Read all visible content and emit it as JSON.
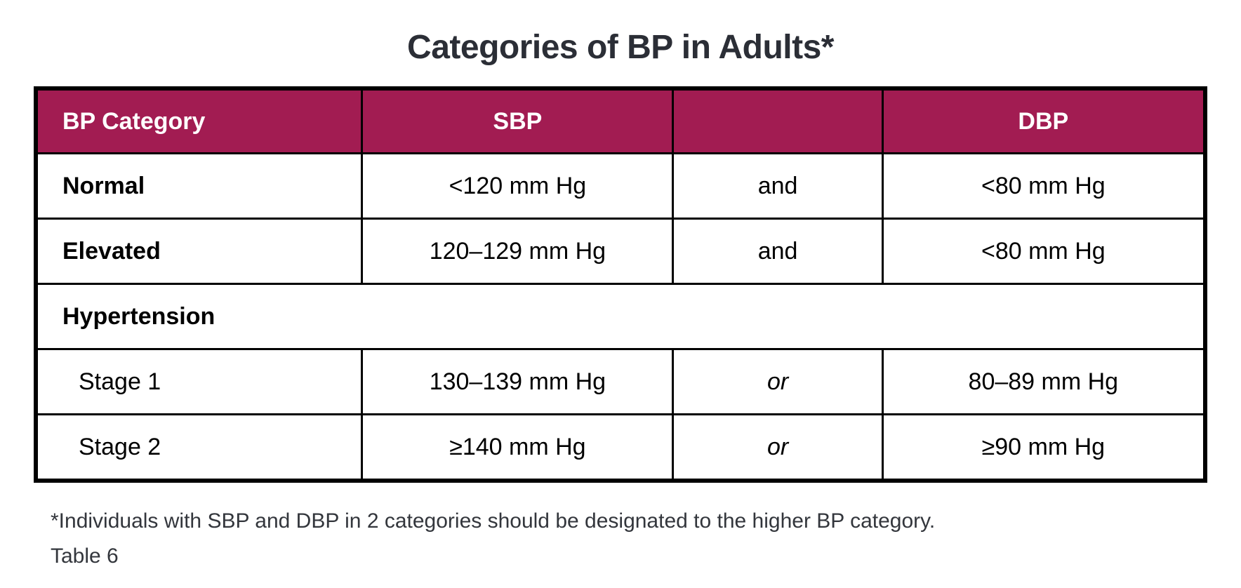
{
  "title": "Categories of BP in Adults*",
  "colors": {
    "header_bg": "#a21c52",
    "header_text": "#ffffff",
    "border": "#000000",
    "title_text": "#2b2e36",
    "body_text": "#000000",
    "footnote_text": "#33363c"
  },
  "table": {
    "columns": [
      {
        "label": "BP Category"
      },
      {
        "label": "SBP"
      },
      {
        "label": ""
      },
      {
        "label": "DBP"
      }
    ],
    "rows": [
      {
        "type": "data",
        "category": "Normal",
        "bold": true,
        "indent": false,
        "sbp": "<120 mm Hg",
        "connector": "and",
        "connector_italic": false,
        "dbp": "<80 mm Hg"
      },
      {
        "type": "data",
        "category": "Elevated",
        "bold": true,
        "indent": false,
        "sbp": "120–129 mm Hg",
        "connector": "and",
        "connector_italic": false,
        "dbp": "<80 mm Hg"
      },
      {
        "type": "section",
        "category": "Hypertension",
        "bold": true
      },
      {
        "type": "data",
        "category": "Stage 1",
        "bold": false,
        "indent": true,
        "sbp": "130–139 mm Hg",
        "connector": "or",
        "connector_italic": true,
        "dbp": "80–89 mm Hg"
      },
      {
        "type": "data",
        "category": "Stage 2",
        "bold": false,
        "indent": true,
        "sbp": "≥140 mm Hg",
        "connector": "or",
        "connector_italic": true,
        "dbp": "≥90 mm Hg"
      }
    ]
  },
  "footnote": "*Individuals with SBP and DBP in 2 categories should be designated to the higher BP category.",
  "table_label": "Table 6"
}
